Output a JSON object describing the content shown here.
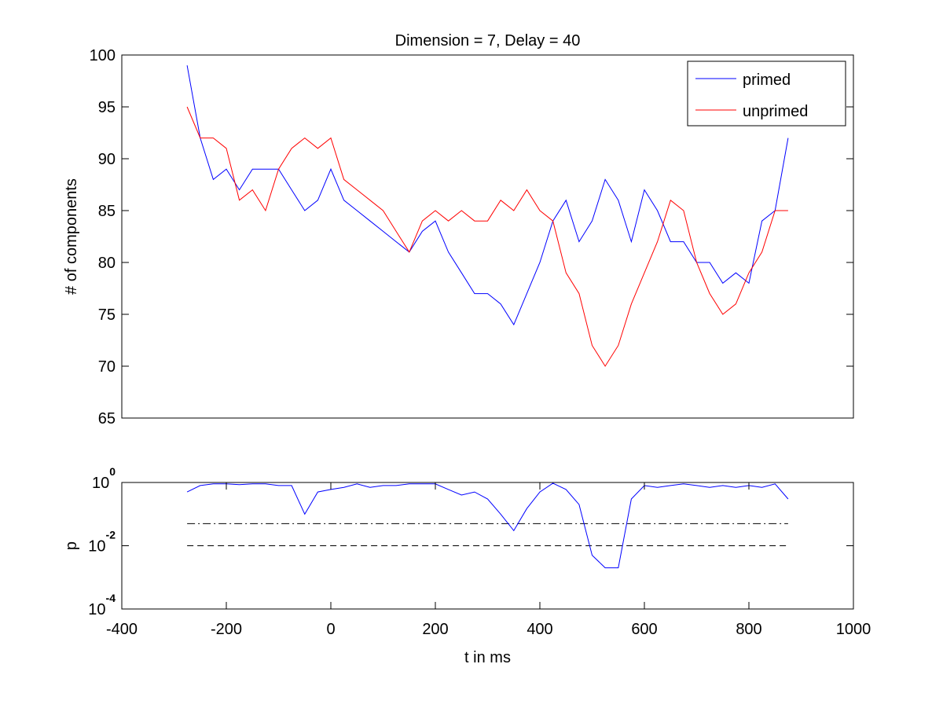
{
  "chart_data": [
    {
      "type": "line",
      "title": "Dimension  = 7, Delay = 40",
      "ylabel": "# of components",
      "x": [
        -275,
        -250,
        -225,
        -200,
        -175,
        -150,
        -125,
        -100,
        -75,
        -50,
        -25,
        0,
        25,
        50,
        75,
        100,
        125,
        150,
        175,
        200,
        225,
        250,
        275,
        300,
        325,
        350,
        375,
        400,
        425,
        450,
        475,
        500,
        525,
        550,
        575,
        600,
        625,
        650,
        675,
        700,
        725,
        750,
        775,
        800,
        825,
        850,
        875
      ],
      "series": [
        {
          "name": "primed",
          "color": "#0000ff",
          "values": [
            99,
            92,
            88,
            89,
            87,
            89,
            89,
            89,
            87,
            85,
            86,
            89,
            86,
            85,
            84,
            83,
            82,
            81,
            83,
            84,
            81,
            79,
            77,
            77,
            76,
            74,
            77,
            80,
            84,
            86,
            82,
            84,
            88,
            86,
            82,
            87,
            85,
            82,
            82,
            80,
            80,
            78,
            79,
            78,
            84,
            85,
            92
          ]
        },
        {
          "name": "unprimed",
          "color": "#ff0000",
          "values": [
            95,
            92,
            92,
            91,
            86,
            87,
            85,
            89,
            91,
            92,
            91,
            92,
            88,
            87,
            86,
            85,
            83,
            81,
            84,
            85,
            84,
            85,
            84,
            84,
            86,
            85,
            87,
            85,
            84,
            79,
            77,
            72,
            70,
            72,
            76,
            79,
            82,
            86,
            85,
            80,
            77,
            75,
            76,
            79,
            81,
            85,
            85
          ]
        }
      ],
      "xlim": [
        -400,
        1000
      ],
      "ylim": [
        65,
        100
      ],
      "yticks": [
        65,
        70,
        75,
        80,
        85,
        90,
        95,
        100
      ],
      "legend": "northeast"
    },
    {
      "type": "line",
      "xlabel": "t in ms",
      "ylabel": "p",
      "log_y": true,
      "x": [
        -275,
        -250,
        -225,
        -200,
        -175,
        -150,
        -125,
        -100,
        -75,
        -50,
        -25,
        0,
        25,
        50,
        75,
        100,
        125,
        150,
        175,
        200,
        225,
        250,
        275,
        300,
        325,
        350,
        375,
        400,
        425,
        450,
        475,
        500,
        525,
        550,
        575,
        600,
        625,
        650,
        675,
        700,
        725,
        750,
        775,
        800,
        825,
        850,
        875
      ],
      "series": [
        {
          "color": "#0000ff",
          "values": [
            0.5,
            0.8,
            0.9,
            0.9,
            0.85,
            0.9,
            0.9,
            0.8,
            0.8,
            0.1,
            0.5,
            0.6,
            0.7,
            0.9,
            0.7,
            0.8,
            0.8,
            0.9,
            0.9,
            0.9,
            0.6,
            0.4,
            0.5,
            0.3,
            0.1,
            0.03,
            0.15,
            0.5,
            0.95,
            0.6,
            0.2,
            0.005,
            0.002,
            0.002,
            0.3,
            0.8,
            0.7,
            0.8,
            0.9,
            0.8,
            0.7,
            0.8,
            0.7,
            0.8,
            0.7,
            0.9,
            0.3
          ]
        }
      ],
      "reference_lines": [
        {
          "value": 0.05,
          "style": "dashdot",
          "color": "#000000"
        },
        {
          "value": 0.01,
          "style": "dashed",
          "color": "#000000"
        }
      ],
      "xlim": [
        -400,
        1000
      ],
      "xticks": [
        -400,
        -200,
        0,
        200,
        400,
        600,
        800,
        1000
      ],
      "ylim": [
        0.0001,
        1
      ],
      "yticks": [
        {
          "value": 1,
          "label": "10^0"
        },
        {
          "value": 0.01,
          "label": "10^-2"
        },
        {
          "value": 0.0001,
          "label": "10^-4"
        }
      ]
    }
  ]
}
